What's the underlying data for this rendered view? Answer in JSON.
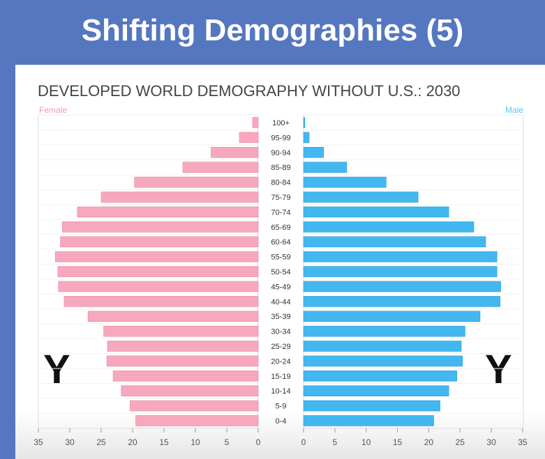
{
  "slide_title": "Shifting Demographies (5)",
  "chart_data": {
    "type": "bar",
    "subtype": "population-pyramid",
    "title": "DEVELOPED WORLD DEMOGRAPHY WITHOUT U.S.: 2030",
    "categories": [
      "100+",
      "95-99",
      "90-94",
      "85-89",
      "80-84",
      "75-79",
      "70-74",
      "65-69",
      "60-64",
      "55-59",
      "50-54",
      "45-49",
      "40-44",
      "35-39",
      "30-34",
      "25-29",
      "20-24",
      "15-19",
      "10-14",
      "5-9",
      "0-4"
    ],
    "series": [
      {
        "name": "Female",
        "color": "#f7a8bd",
        "values": [
          0.9,
          3,
          7.5,
          12,
          19.7,
          25,
          28.8,
          31.2,
          31.5,
          32.3,
          31.9,
          31.8,
          30.9,
          27.1,
          24.6,
          24,
          24.1,
          23.1,
          21.8,
          20.4,
          19.5
        ]
      },
      {
        "name": "Male",
        "color": "#43b8f0",
        "values": [
          0.2,
          0.9,
          3.2,
          6.9,
          13.2,
          18.3,
          23.2,
          27.2,
          29.1,
          30.9,
          30.9,
          31.5,
          31.4,
          28.2,
          25.8,
          25.2,
          25.4,
          24.5,
          23.2,
          21.8,
          20.8
        ]
      }
    ],
    "xlim": [
      0,
      35
    ],
    "xticks": [
      0,
      5,
      10,
      15,
      20,
      25,
      30,
      35
    ],
    "grid": true,
    "annotations": [
      "Y",
      "Y"
    ]
  }
}
